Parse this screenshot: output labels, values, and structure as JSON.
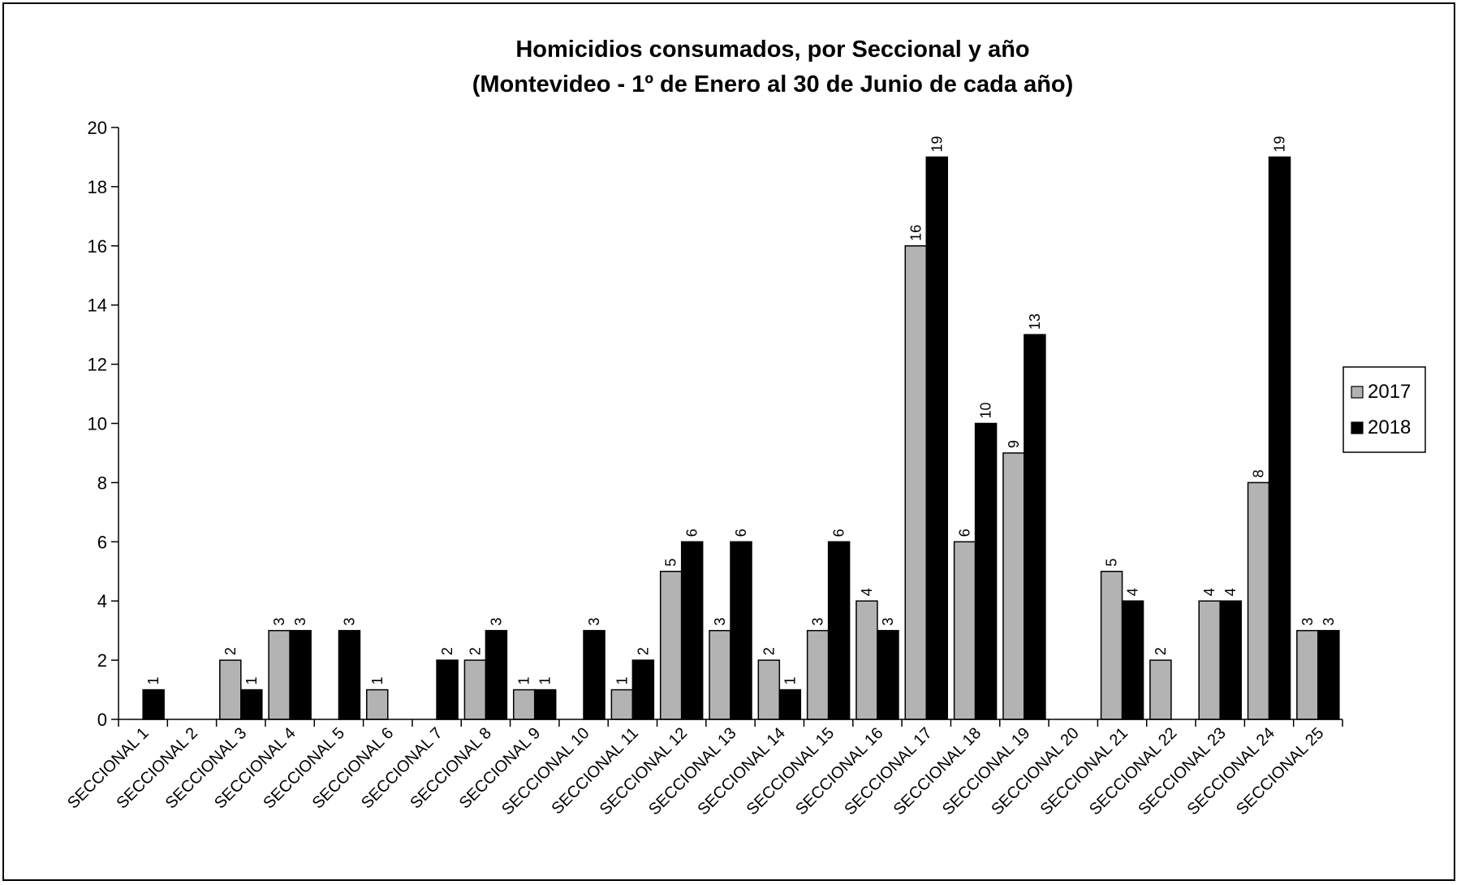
{
  "chart_data": {
    "type": "bar",
    "title": "Homicidios consumados, por Seccional y año",
    "subtitle": "(Montevideo - 1º de Enero al 30 de Junio de cada año)",
    "xlabel": "",
    "ylabel": "",
    "ylim": [
      0,
      20
    ],
    "yticks": [
      0,
      2,
      4,
      6,
      8,
      10,
      12,
      14,
      16,
      18,
      20
    ],
    "grid": false,
    "legend_position": "right",
    "categories": [
      "SECCIONAL 1",
      "SECCIONAL 2",
      "SECCIONAL 3",
      "SECCIONAL 4",
      "SECCIONAL 5",
      "SECCIONAL 6",
      "SECCIONAL 7",
      "SECCIONAL 8",
      "SECCIONAL 9",
      "SECCIONAL 10",
      "SECCIONAL 11",
      "SECCIONAL 12",
      "SECCIONAL 13",
      "SECCIONAL 14",
      "SECCIONAL 15",
      "SECCIONAL 16",
      "SECCIONAL 17",
      "SECCIONAL 18",
      "SECCIONAL 19",
      "SECCIONAL 20",
      "SECCIONAL 21",
      "SECCIONAL 22",
      "SECCIONAL 23",
      "SECCIONAL 24",
      "SECCIONAL 25"
    ],
    "series": [
      {
        "name": "2017",
        "color": "#b3b3b3",
        "values": [
          0,
          0,
          2,
          3,
          0,
          1,
          0,
          2,
          1,
          0,
          1,
          5,
          3,
          2,
          3,
          4,
          16,
          6,
          9,
          0,
          5,
          2,
          4,
          8,
          3
        ]
      },
      {
        "name": "2018",
        "color": "#000000",
        "values": [
          1,
          0,
          1,
          3,
          3,
          0,
          2,
          3,
          1,
          3,
          2,
          6,
          6,
          1,
          6,
          3,
          19,
          10,
          13,
          0,
          4,
          0,
          4,
          19,
          3
        ]
      }
    ]
  }
}
